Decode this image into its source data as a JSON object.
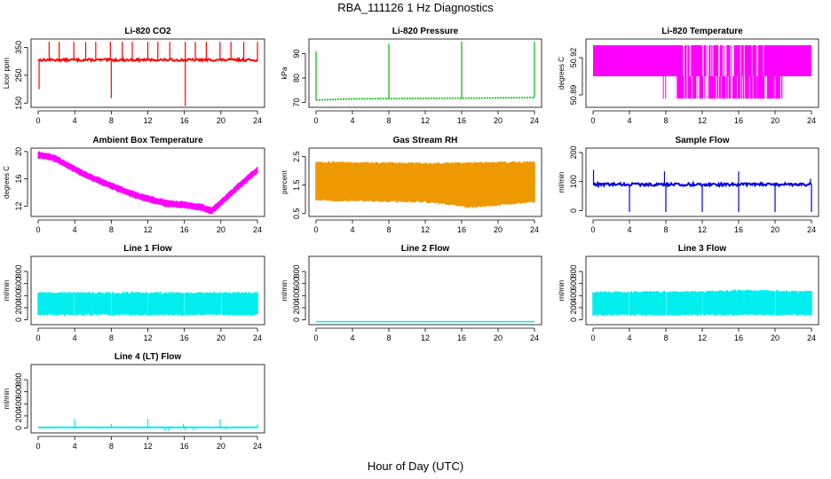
{
  "page": {
    "title": "RBA_111126  1 Hz Diagnostics",
    "x_caption": "Hour of Day (UTC)"
  },
  "chart_data": [
    {
      "type": "line",
      "title": "Li-820 CO2",
      "xlabel": "",
      "ylabel": "Licor ppm",
      "color": "#ff0000",
      "xlim": [
        0,
        24
      ],
      "ylim": [
        135,
        380
      ],
      "xticks": [
        0,
        4,
        8,
        12,
        16,
        20,
        24
      ],
      "yticks": [
        150,
        250,
        350
      ],
      "baseline": 305,
      "noise": 8,
      "spikes": [
        {
          "x": 0.1,
          "y": 200
        },
        {
          "x": 1.2,
          "y": 370
        },
        {
          "x": 2.3,
          "y": 370
        },
        {
          "x": 3.9,
          "y": 370
        },
        {
          "x": 5.2,
          "y": 370
        },
        {
          "x": 6.3,
          "y": 370
        },
        {
          "x": 7.9,
          "y": 370
        },
        {
          "x": 8.0,
          "y": 168
        },
        {
          "x": 9.2,
          "y": 370
        },
        {
          "x": 10.3,
          "y": 370
        },
        {
          "x": 12.0,
          "y": 370
        },
        {
          "x": 13.1,
          "y": 370
        },
        {
          "x": 14.4,
          "y": 370
        },
        {
          "x": 16.1,
          "y": 370
        },
        {
          "x": 16.1,
          "y": 140
        },
        {
          "x": 17.2,
          "y": 370
        },
        {
          "x": 18.4,
          "y": 370
        },
        {
          "x": 19.9,
          "y": 370
        },
        {
          "x": 21.1,
          "y": 370
        },
        {
          "x": 22.5,
          "y": 370
        },
        {
          "x": 24.0,
          "y": 370
        }
      ]
    },
    {
      "type": "line",
      "title": "Li-820 Pressure",
      "xlabel": "",
      "ylabel": "kPa",
      "color": "#00bb00",
      "xlim": [
        0,
        24
      ],
      "ylim": [
        68,
        96
      ],
      "xticks": [
        0,
        4,
        8,
        12,
        16,
        20,
        24
      ],
      "yticks": [
        70,
        80,
        90
      ],
      "series": [
        {
          "x": [
            0,
            4,
            8,
            12,
            16,
            20,
            24
          ],
          "y": [
            71.0,
            71.5,
            71.6,
            71.7,
            71.8,
            71.9,
            72.0
          ]
        }
      ],
      "spikes": [
        {
          "x": 0.0,
          "y": 91
        },
        {
          "x": 8.0,
          "y": 94
        },
        {
          "x": 16.0,
          "y": 95
        },
        {
          "x": 24.0,
          "y": 95
        }
      ]
    },
    {
      "type": "step",
      "title": "Li-820 Temperature",
      "xlabel": "",
      "ylabel": "degrees C",
      "color": "#ff00ff",
      "xlim": [
        0,
        24
      ],
      "ylim": [
        50.88,
        50.935
      ],
      "xticks": [
        0,
        4,
        8,
        12,
        16,
        20,
        24
      ],
      "yticks": [
        50.89,
        50.92
      ],
      "ytick_labels": [
        "50.89",
        "50.92"
      ],
      "levels": [
        50.887,
        50.905,
        50.93
      ],
      "dense_from": 6.8,
      "dense_to": 20.8
    },
    {
      "type": "line",
      "title": "Ambient Box Temperature",
      "xlabel": "",
      "ylabel": "degrees C",
      "color": "#ff00ff",
      "xlim": [
        0,
        24
      ],
      "ylim": [
        10.5,
        20.5
      ],
      "xticks": [
        0,
        4,
        8,
        12,
        16,
        20,
        24
      ],
      "yticks": [
        12,
        16,
        20
      ],
      "band": 0.5,
      "series": [
        {
          "x": [
            0,
            1,
            2,
            4,
            6,
            8,
            10,
            12,
            14,
            16,
            18,
            19,
            20,
            22,
            24
          ],
          "y": [
            19.5,
            19.3,
            18.9,
            17.4,
            16.1,
            15.0,
            13.9,
            13.1,
            12.4,
            12.2,
            11.8,
            11.3,
            12.5,
            15.0,
            17.3
          ]
        }
      ]
    },
    {
      "type": "band",
      "title": "Gas Stream RH",
      "xlabel": "",
      "ylabel": "percent",
      "color": "#ee9900",
      "xlim": [
        0,
        24
      ],
      "ylim": [
        0.4,
        2.8
      ],
      "xticks": [
        0,
        4,
        8,
        12,
        16,
        20,
        24
      ],
      "yticks": [
        0.5,
        1.5,
        2.5
      ],
      "upper": [
        {
          "x": 0,
          "y": 2.3
        },
        {
          "x": 12,
          "y": 2.25
        },
        {
          "x": 24,
          "y": 2.3
        }
      ],
      "lower": [
        {
          "x": 0,
          "y": 1.0
        },
        {
          "x": 12,
          "y": 0.95
        },
        {
          "x": 17,
          "y": 0.75
        },
        {
          "x": 24,
          "y": 0.95
        }
      ]
    },
    {
      "type": "line",
      "title": "Sample Flow",
      "xlabel": "",
      "ylabel": "ml/min",
      "color": "#0000dd",
      "xlim": [
        0,
        24
      ],
      "ylim": [
        -20,
        215
      ],
      "xticks": [
        0,
        4,
        8,
        12,
        16,
        20,
        24
      ],
      "yticks": [
        0,
        100,
        200
      ],
      "baseline": 90,
      "noise": 10,
      "spikes": [
        {
          "x": 0.05,
          "y": 140
        },
        {
          "x": 4.0,
          "y": -5
        },
        {
          "x": 7.85,
          "y": 135
        },
        {
          "x": 8.0,
          "y": -5
        },
        {
          "x": 12.0,
          "y": -5
        },
        {
          "x": 16.0,
          "y": 135
        },
        {
          "x": 16.0,
          "y": -5
        },
        {
          "x": 20.0,
          "y": -5
        },
        {
          "x": 23.9,
          "y": 110
        },
        {
          "x": 24.0,
          "y": -5
        }
      ]
    },
    {
      "type": "band",
      "title": "Line 1 Flow",
      "xlabel": "",
      "ylabel": "ml/min",
      "color": "#00eeee",
      "xlim": [
        0,
        24
      ],
      "ylim": [
        -80,
        1050
      ],
      "xticks": [
        0,
        4,
        8,
        12,
        16,
        20,
        24
      ],
      "yticks": [
        0,
        200,
        400,
        600,
        800
      ],
      "upper": [
        {
          "x": 0,
          "y": 440
        },
        {
          "x": 24,
          "y": 440
        }
      ],
      "lower": [
        {
          "x": 0,
          "y": 100
        },
        {
          "x": 24,
          "y": 100
        }
      ],
      "gaps": [
        4,
        8,
        12,
        16,
        20
      ]
    },
    {
      "type": "line",
      "title": "Line 2 Flow",
      "xlabel": "",
      "ylabel": "ml/min",
      "color": "#00eeee",
      "xlim": [
        0,
        24
      ],
      "ylim": [
        -80,
        1050
      ],
      "xticks": [
        0,
        4,
        8,
        12,
        16,
        20,
        24
      ],
      "yticks": [
        0,
        200,
        400,
        600,
        800
      ],
      "series": [
        {
          "x": [
            0,
            24
          ],
          "y": [
            -30,
            -30
          ]
        }
      ]
    },
    {
      "type": "band",
      "title": "Line 3 Flow",
      "xlabel": "",
      "ylabel": "ml/min",
      "color": "#00eeee",
      "xlim": [
        0,
        24
      ],
      "ylim": [
        -80,
        1050
      ],
      "xticks": [
        0,
        4,
        8,
        12,
        16,
        20,
        24
      ],
      "yticks": [
        0,
        200,
        400,
        600,
        800
      ],
      "upper": [
        {
          "x": 0,
          "y": 450
        },
        {
          "x": 13,
          "y": 460
        },
        {
          "x": 16,
          "y": 480
        },
        {
          "x": 24,
          "y": 460
        }
      ],
      "lower": [
        {
          "x": 0,
          "y": 100
        },
        {
          "x": 24,
          "y": 100
        }
      ],
      "gaps": [
        4,
        8,
        12,
        20
      ]
    },
    {
      "type": "line",
      "title": "Line 4 (LT) Flow",
      "xlabel": "",
      "ylabel": "ml/min",
      "color": "#00eeee",
      "xlim": [
        0,
        24
      ],
      "ylim": [
        -80,
        1050
      ],
      "xticks": [
        0,
        4,
        8,
        12,
        16,
        20,
        24
      ],
      "yticks": [
        0,
        200,
        400,
        600,
        800
      ],
      "baseline": 10,
      "noise": 4,
      "spikes": [
        {
          "x": 4.0,
          "y": 150
        },
        {
          "x": 8.0,
          "y": 70
        },
        {
          "x": 12.0,
          "y": 150
        },
        {
          "x": 13.9,
          "y": -50
        },
        {
          "x": 14.3,
          "y": -50
        },
        {
          "x": 15.9,
          "y": 70
        },
        {
          "x": 16.1,
          "y": -40
        },
        {
          "x": 17.0,
          "y": -40
        },
        {
          "x": 19.9,
          "y": 150
        },
        {
          "x": 20.6,
          "y": -30
        },
        {
          "x": 24.0,
          "y": 70
        }
      ]
    }
  ]
}
